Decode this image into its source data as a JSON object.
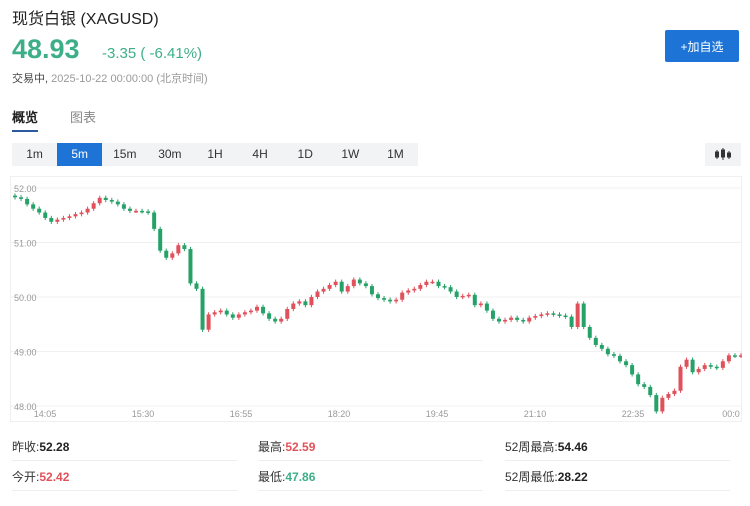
{
  "header": {
    "title": "现货白银 (XAGUSD)",
    "price": "48.93",
    "change": "-3.35 ( -6.41%)",
    "status": "交易中,",
    "time": "2025-10-22 00:00:00 (北京时间)",
    "add_button": "+加自选"
  },
  "tabs": [
    {
      "label": "概览"
    },
    {
      "label": "图表"
    }
  ],
  "intervals": [
    {
      "label": "1m"
    },
    {
      "label": "5m",
      "selected": true
    },
    {
      "label": "15m"
    },
    {
      "label": "30m"
    },
    {
      "label": "1H"
    },
    {
      "label": "4H"
    },
    {
      "label": "1D"
    },
    {
      "label": "1W"
    },
    {
      "label": "1M"
    }
  ],
  "chart_type_icon": "candlestick-icon",
  "colors": {
    "up": "#e0515b",
    "down": "#26a269",
    "accent": "#1d74d6"
  },
  "chart_data": {
    "type": "candlestick",
    "interval": "5m",
    "ylim": [
      48,
      52.1
    ],
    "yticks": [
      "52.00",
      "51.00",
      "50.00",
      "49.00",
      "48.00"
    ],
    "xticks": [
      "14:05",
      "15:30",
      "16:55",
      "18:20",
      "19:45",
      "21:10",
      "22:35",
      "00:0"
    ],
    "grid": true,
    "open_first": 51.86,
    "close": [
      51.83,
      51.8,
      51.7,
      51.62,
      51.55,
      51.45,
      51.38,
      51.42,
      51.45,
      51.48,
      51.52,
      51.55,
      51.62,
      51.72,
      51.82,
      51.78,
      51.75,
      51.7,
      51.62,
      51.58,
      51.58,
      51.57,
      51.55,
      51.25,
      50.85,
      50.72,
      50.8,
      50.95,
      50.88,
      50.25,
      50.15,
      49.4,
      49.68,
      49.72,
      49.75,
      49.68,
      49.62,
      49.68,
      49.72,
      49.75,
      49.82,
      49.7,
      49.6,
      49.55,
      49.6,
      49.78,
      49.88,
      49.92,
      49.85,
      50.0,
      50.1,
      50.15,
      50.22,
      50.28,
      50.1,
      50.2,
      50.32,
      50.25,
      50.2,
      50.05,
      49.98,
      49.95,
      49.92,
      49.95,
      50.08,
      50.12,
      50.15,
      50.22,
      50.28,
      50.28,
      50.2,
      50.18,
      50.1,
      50.0,
      50.02,
      50.04,
      49.85,
      49.88,
      49.75,
      49.6,
      49.55,
      49.58,
      49.62,
      49.58,
      49.55,
      49.62,
      49.65,
      49.68,
      49.7,
      49.68,
      49.66,
      49.64,
      49.45,
      49.88,
      49.45,
      49.25,
      49.12,
      49.05,
      48.95,
      48.92,
      48.82,
      48.75,
      48.58,
      48.4,
      48.35,
      48.2,
      47.9,
      48.15,
      48.22,
      48.28,
      48.72,
      48.85,
      48.62,
      48.68,
      48.75,
      48.72,
      48.7,
      48.82,
      48.93,
      48.92,
      48.93,
      48.93
    ]
  },
  "stats": [
    [
      {
        "label": "昨收:",
        "value": "52.28",
        "tone": "neutral"
      },
      {
        "label": "最高:",
        "value": "52.59",
        "tone": "up"
      },
      {
        "label": "52周最高:",
        "value": "54.46",
        "tone": "neutral"
      }
    ],
    [
      {
        "label": "今开:",
        "value": "52.42",
        "tone": "up"
      },
      {
        "label": "最低:",
        "value": "47.86",
        "tone": "down"
      },
      {
        "label": "52周最低:",
        "value": "28.22",
        "tone": "neutral"
      }
    ]
  ]
}
